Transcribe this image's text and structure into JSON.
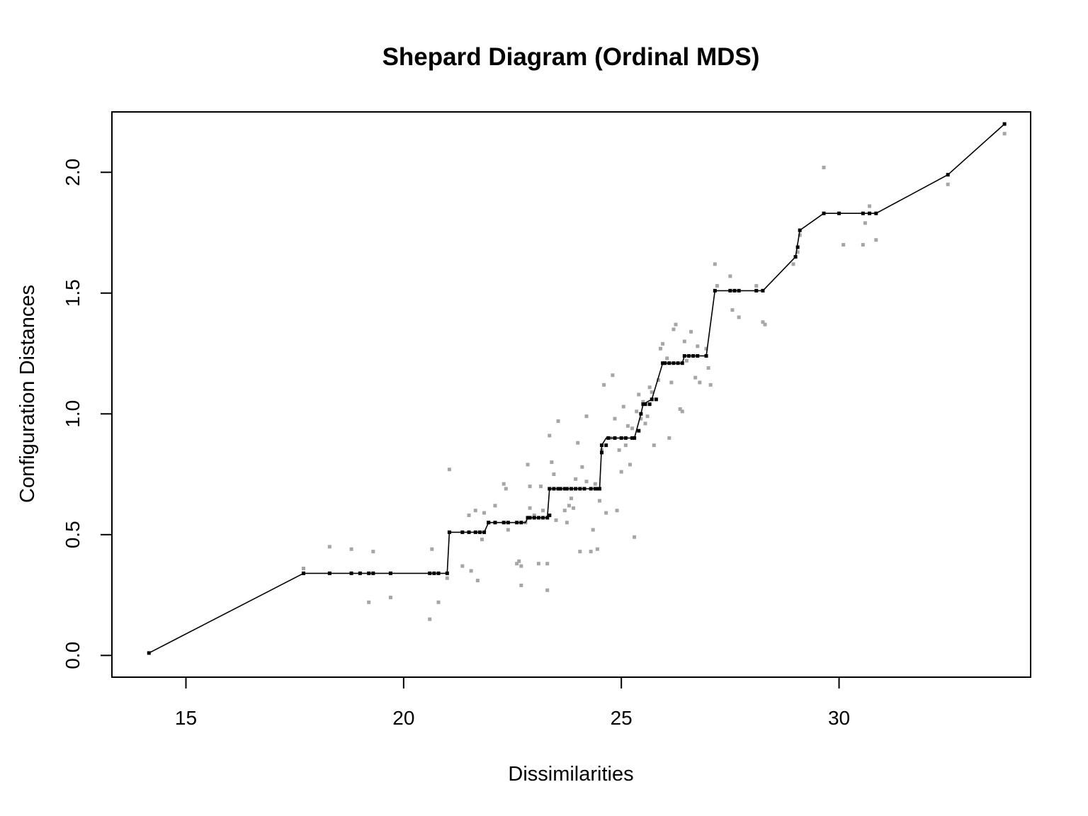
{
  "chart_data": {
    "type": "scatter",
    "title": "Shepard Diagram (Ordinal MDS)",
    "xlabel": "Dissimilarities",
    "ylabel": "Configuration Distances",
    "xlim": [
      13.3,
      34.4
    ],
    "ylim": [
      -0.09,
      2.25
    ],
    "x_ticks": [
      15,
      20,
      25,
      30
    ],
    "x_tick_labels": [
      "15",
      "20",
      "25",
      "30"
    ],
    "y_ticks": [
      0.0,
      0.5,
      1.0,
      1.5,
      2.0
    ],
    "y_tick_labels": [
      "0.0",
      "0.5",
      "1.0",
      "1.5",
      "2.0"
    ],
    "grid": false,
    "legend": "none",
    "colors": {
      "observed": "#a6a6a6",
      "fitted": "#000000",
      "line": "#000000"
    },
    "series": [
      {
        "role": "observed configuration distances",
        "points": [
          [
            17.7,
            0.36
          ],
          [
            17.7,
            0.34
          ],
          [
            18.3,
            0.45
          ],
          [
            18.8,
            0.44
          ],
          [
            19.2,
            0.22
          ],
          [
            19.3,
            0.43
          ],
          [
            19.7,
            0.24
          ],
          [
            20.6,
            0.15
          ],
          [
            20.65,
            0.44
          ],
          [
            20.8,
            0.22
          ],
          [
            21.0,
            0.32
          ],
          [
            21.05,
            0.77
          ],
          [
            21.35,
            0.37
          ],
          [
            21.5,
            0.58
          ],
          [
            21.55,
            0.35
          ],
          [
            21.65,
            0.6
          ],
          [
            21.7,
            0.31
          ],
          [
            21.8,
            0.48
          ],
          [
            21.85,
            0.59
          ],
          [
            21.95,
            0.55
          ],
          [
            22.1,
            0.62
          ],
          [
            22.3,
            0.71
          ],
          [
            22.35,
            0.69
          ],
          [
            22.4,
            0.52
          ],
          [
            22.6,
            0.38
          ],
          [
            22.65,
            0.39
          ],
          [
            22.7,
            0.37
          ],
          [
            22.7,
            0.29
          ],
          [
            22.8,
            0.55
          ],
          [
            22.85,
            0.79
          ],
          [
            22.9,
            0.7
          ],
          [
            22.9,
            0.61
          ],
          [
            23.0,
            0.58
          ],
          [
            23.1,
            0.38
          ],
          [
            23.15,
            0.7
          ],
          [
            23.2,
            0.6
          ],
          [
            23.3,
            0.38
          ],
          [
            23.3,
            0.27
          ],
          [
            23.35,
            0.58
          ],
          [
            23.35,
            0.91
          ],
          [
            23.4,
            0.8
          ],
          [
            23.45,
            0.75
          ],
          [
            23.5,
            0.56
          ],
          [
            23.55,
            0.97
          ],
          [
            23.6,
            0.69
          ],
          [
            23.7,
            0.6
          ],
          [
            23.75,
            0.55
          ],
          [
            23.8,
            0.62
          ],
          [
            23.85,
            0.65
          ],
          [
            23.9,
            0.61
          ],
          [
            23.95,
            0.73
          ],
          [
            24.0,
            0.88
          ],
          [
            24.05,
            0.43
          ],
          [
            24.1,
            0.78
          ],
          [
            24.2,
            0.99
          ],
          [
            24.2,
            0.72
          ],
          [
            24.3,
            0.43
          ],
          [
            24.35,
            0.52
          ],
          [
            24.4,
            0.71
          ],
          [
            24.45,
            0.44
          ],
          [
            24.5,
            0.64
          ],
          [
            24.55,
            0.85
          ],
          [
            24.6,
            1.12
          ],
          [
            24.65,
            0.59
          ],
          [
            24.75,
            0.9
          ],
          [
            24.8,
            1.16
          ],
          [
            24.85,
            0.98
          ],
          [
            24.9,
            0.6
          ],
          [
            24.95,
            0.85
          ],
          [
            25.0,
            0.76
          ],
          [
            25.05,
            1.03
          ],
          [
            25.1,
            0.87
          ],
          [
            25.15,
            0.95
          ],
          [
            25.2,
            0.79
          ],
          [
            25.25,
            0.94
          ],
          [
            25.3,
            0.49
          ],
          [
            25.35,
            1.01
          ],
          [
            25.4,
            1.08
          ],
          [
            25.45,
            0.98
          ],
          [
            25.5,
            1.05
          ],
          [
            25.55,
            0.96
          ],
          [
            25.6,
            0.99
          ],
          [
            25.65,
            1.11
          ],
          [
            25.7,
            1.09
          ],
          [
            25.75,
            0.87
          ],
          [
            25.85,
            1.14
          ],
          [
            25.9,
            1.27
          ],
          [
            25.95,
            1.29
          ],
          [
            26.0,
            1.21
          ],
          [
            26.05,
            1.23
          ],
          [
            26.1,
            0.9
          ],
          [
            26.15,
            1.13
          ],
          [
            26.2,
            1.35
          ],
          [
            26.25,
            1.37
          ],
          [
            26.35,
            1.02
          ],
          [
            26.4,
            1.01
          ],
          [
            26.45,
            1.3
          ],
          [
            26.5,
            1.22
          ],
          [
            26.6,
            1.34
          ],
          [
            26.7,
            1.15
          ],
          [
            26.75,
            1.28
          ],
          [
            26.8,
            1.13
          ],
          [
            26.95,
            1.27
          ],
          [
            27.0,
            1.19
          ],
          [
            27.05,
            1.12
          ],
          [
            27.15,
            1.62
          ],
          [
            27.2,
            1.53
          ],
          [
            27.5,
            1.57
          ],
          [
            27.55,
            1.43
          ],
          [
            27.7,
            1.4
          ],
          [
            28.1,
            1.53
          ],
          [
            28.25,
            1.38
          ],
          [
            28.3,
            1.37
          ],
          [
            28.95,
            1.62
          ],
          [
            29.05,
            1.67
          ],
          [
            29.1,
            1.74
          ],
          [
            29.65,
            2.02
          ],
          [
            30.1,
            1.7
          ],
          [
            30.55,
            1.7
          ],
          [
            30.6,
            1.79
          ],
          [
            30.7,
            1.86
          ],
          [
            30.85,
            1.72
          ],
          [
            32.5,
            1.95
          ],
          [
            33.8,
            2.16
          ]
        ]
      },
      {
        "role": "fitted disparities",
        "points": [
          [
            14.15,
            0.01
          ],
          [
            17.7,
            0.34
          ],
          [
            18.3,
            0.34
          ],
          [
            18.8,
            0.34
          ],
          [
            19.0,
            0.34
          ],
          [
            19.2,
            0.34
          ],
          [
            19.3,
            0.34
          ],
          [
            19.7,
            0.34
          ],
          [
            20.6,
            0.34
          ],
          [
            20.7,
            0.34
          ],
          [
            20.8,
            0.34
          ],
          [
            21.0,
            0.34
          ],
          [
            21.05,
            0.51
          ],
          [
            21.35,
            0.51
          ],
          [
            21.5,
            0.51
          ],
          [
            21.65,
            0.51
          ],
          [
            21.75,
            0.51
          ],
          [
            21.85,
            0.51
          ],
          [
            21.95,
            0.55
          ],
          [
            22.1,
            0.55
          ],
          [
            22.3,
            0.55
          ],
          [
            22.4,
            0.55
          ],
          [
            22.6,
            0.55
          ],
          [
            22.7,
            0.55
          ],
          [
            22.85,
            0.57
          ],
          [
            22.9,
            0.57
          ],
          [
            23.0,
            0.57
          ],
          [
            23.1,
            0.57
          ],
          [
            23.2,
            0.57
          ],
          [
            23.3,
            0.57
          ],
          [
            23.35,
            0.58
          ],
          [
            23.35,
            0.69
          ],
          [
            23.45,
            0.69
          ],
          [
            23.55,
            0.69
          ],
          [
            23.6,
            0.69
          ],
          [
            23.7,
            0.69
          ],
          [
            23.75,
            0.69
          ],
          [
            23.85,
            0.69
          ],
          [
            23.95,
            0.69
          ],
          [
            24.05,
            0.69
          ],
          [
            24.15,
            0.69
          ],
          [
            24.3,
            0.69
          ],
          [
            24.4,
            0.69
          ],
          [
            24.45,
            0.69
          ],
          [
            24.5,
            0.69
          ],
          [
            24.55,
            0.84
          ],
          [
            24.55,
            0.87
          ],
          [
            24.65,
            0.87
          ],
          [
            24.7,
            0.9
          ],
          [
            24.85,
            0.9
          ],
          [
            25.0,
            0.9
          ],
          [
            25.1,
            0.9
          ],
          [
            25.25,
            0.9
          ],
          [
            25.3,
            0.9
          ],
          [
            25.4,
            0.93
          ],
          [
            25.45,
            1.0
          ],
          [
            25.5,
            1.04
          ],
          [
            25.55,
            1.04
          ],
          [
            25.65,
            1.04
          ],
          [
            25.7,
            1.06
          ],
          [
            25.8,
            1.06
          ],
          [
            25.95,
            1.21
          ],
          [
            26.0,
            1.21
          ],
          [
            26.1,
            1.21
          ],
          [
            26.2,
            1.21
          ],
          [
            26.3,
            1.21
          ],
          [
            26.4,
            1.21
          ],
          [
            26.45,
            1.24
          ],
          [
            26.55,
            1.24
          ],
          [
            26.65,
            1.24
          ],
          [
            26.75,
            1.24
          ],
          [
            26.95,
            1.24
          ],
          [
            27.15,
            1.51
          ],
          [
            27.5,
            1.51
          ],
          [
            27.6,
            1.51
          ],
          [
            27.7,
            1.51
          ],
          [
            28.1,
            1.51
          ],
          [
            28.25,
            1.51
          ],
          [
            29.0,
            1.65
          ],
          [
            29.05,
            1.69
          ],
          [
            29.1,
            1.76
          ],
          [
            29.65,
            1.83
          ],
          [
            30.0,
            1.83
          ],
          [
            30.55,
            1.83
          ],
          [
            30.7,
            1.83
          ],
          [
            30.85,
            1.83
          ],
          [
            32.5,
            1.99
          ],
          [
            33.8,
            2.2
          ]
        ]
      }
    ],
    "step_line": [
      [
        14.15,
        0.01
      ],
      [
        17.7,
        0.34
      ],
      [
        21.0,
        0.34
      ],
      [
        21.05,
        0.51
      ],
      [
        21.85,
        0.51
      ],
      [
        21.95,
        0.55
      ],
      [
        22.8,
        0.55
      ],
      [
        22.85,
        0.57
      ],
      [
        23.3,
        0.57
      ],
      [
        23.35,
        0.69
      ],
      [
        24.5,
        0.69
      ],
      [
        24.55,
        0.87
      ],
      [
        24.65,
        0.9
      ],
      [
        25.3,
        0.9
      ],
      [
        25.45,
        1.0
      ],
      [
        25.5,
        1.04
      ],
      [
        25.7,
        1.06
      ],
      [
        25.95,
        1.21
      ],
      [
        26.4,
        1.21
      ],
      [
        26.45,
        1.24
      ],
      [
        26.95,
        1.24
      ],
      [
        27.15,
        1.51
      ],
      [
        28.25,
        1.51
      ],
      [
        29.0,
        1.65
      ],
      [
        29.1,
        1.76
      ],
      [
        29.65,
        1.83
      ],
      [
        30.85,
        1.83
      ],
      [
        32.5,
        1.99
      ],
      [
        33.8,
        2.2
      ]
    ]
  }
}
